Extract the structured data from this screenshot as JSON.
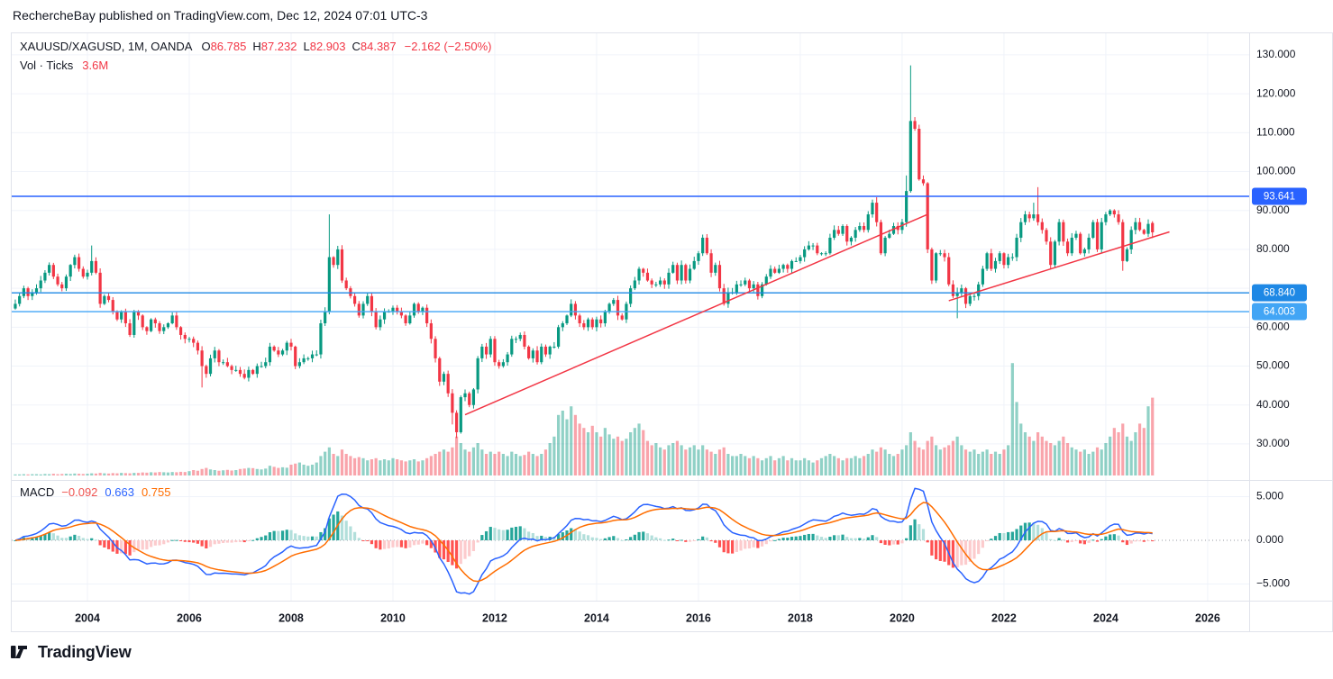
{
  "header": {
    "attribution": "RechercheBay published on TradingView.com, Dec 12, 2024 07:01 UTC-3"
  },
  "legend": {
    "symbol": "XAUUSD/XAGUSD, 1M, OANDA",
    "ohlc": [
      {
        "label": "O",
        "value": "86.785"
      },
      {
        "label": "H",
        "value": "87.232"
      },
      {
        "label": "L",
        "value": "82.903"
      },
      {
        "label": "C",
        "value": "84.387"
      }
    ],
    "change": "−2.162 (−2.50%)",
    "volume_label": "Vol · Ticks",
    "volume_value": "3.6M"
  },
  "macd_legend": {
    "label": "MACD",
    "values": [
      {
        "text": "−0.092",
        "color": "#ef5350"
      },
      {
        "text": "0.663",
        "color": "#2962ff"
      },
      {
        "text": "0.755",
        "color": "#ff6d00"
      }
    ]
  },
  "price_axis": {
    "ticks": [
      "130.000",
      "120.000",
      "110.000",
      "100.000",
      "90.000",
      "80.000",
      "60.000",
      "50.000",
      "40.000",
      "30.000"
    ]
  },
  "macd_axis": [
    {
      "label": "5.000",
      "v": 5
    },
    {
      "label": "0.000",
      "v": 0
    },
    {
      "label": "−5.000",
      "v": -5
    }
  ],
  "time_axis": [
    "2004",
    "2006",
    "2008",
    "2010",
    "2012",
    "2014",
    "2016",
    "2018",
    "2020",
    "2022",
    "2024",
    "2026"
  ],
  "levels": [
    {
      "label": "93.641",
      "price": 93.641,
      "color": "#2962ff"
    },
    {
      "label": "68.840",
      "price": 68.84,
      "color": "#1e88e5"
    },
    {
      "label": "64.003",
      "price": 64.003,
      "color": "#42a5f5"
    }
  ],
  "trendlines": [
    {
      "start_month": "2011-06",
      "start_price": 37.5,
      "end_month": "2020-07",
      "end_price": 89,
      "color": "#f23645"
    },
    {
      "start_month": "2020-12",
      "start_price": 66.8,
      "end_month": "2025-04",
      "end_price": 84.5,
      "color": "#f23645"
    }
  ],
  "footer": {
    "brand": "TradingView"
  },
  "chart_data": {
    "type": "candlestick",
    "symbol": "XAUUSD/XAGUSD",
    "timeframe": "1M",
    "exchange": "OANDA",
    "subpanes": [
      "volume",
      "macd"
    ],
    "start_month": "2002-08",
    "ohlc_current": {
      "o": 86.785,
      "h": 87.232,
      "l": 82.903,
      "c": 84.387,
      "change": -2.162,
      "change_pct": -2.5
    },
    "price_axis_range": [
      23,
      134
    ],
    "macd_axis_range": [
      -6.9,
      6.9
    ],
    "closes": [
      66,
      68,
      70,
      68,
      69,
      70,
      72,
      74,
      76,
      73,
      71,
      70,
      73,
      76,
      78,
      75,
      73,
      74,
      77,
      74,
      66,
      68,
      67,
      64,
      62,
      64,
      61,
      58,
      64,
      63,
      60,
      59,
      62,
      61,
      59,
      60,
      61,
      63,
      60,
      58,
      57,
      57,
      56,
      54,
      50,
      48,
      52,
      54,
      51,
      51,
      50,
      49,
      49,
      48,
      47,
      49,
      48,
      50,
      50,
      51,
      55,
      54,
      53,
      54,
      56,
      55,
      50,
      51,
      52,
      52,
      53,
      53,
      61,
      64,
      78,
      76,
      80,
      72,
      70,
      68,
      66,
      63,
      66,
      68,
      64,
      60,
      62,
      64,
      64,
      65,
      64,
      63,
      61,
      63,
      66,
      64,
      65,
      61,
      57,
      52,
      46,
      48,
      43,
      38,
      33,
      42,
      43,
      40,
      44,
      52,
      55,
      53,
      57,
      51,
      50,
      51,
      53,
      57,
      57,
      58,
      55,
      52,
      54,
      51,
      55,
      53,
      55,
      55,
      60,
      61,
      63,
      66,
      63,
      61,
      60,
      62,
      60,
      62,
      61,
      64,
      66,
      67,
      63,
      62,
      66,
      70,
      72,
      75,
      74,
      72,
      71,
      71,
      72,
      71,
      74,
      76,
      72,
      76,
      72,
      75,
      77,
      79,
      83,
      79,
      74,
      76,
      70,
      66,
      69,
      69,
      71,
      71,
      72,
      70,
      71,
      68,
      71,
      73,
      75,
      74,
      75,
      76,
      75,
      77,
      77,
      78,
      80,
      81,
      81,
      79,
      79,
      79,
      83,
      85,
      84,
      86,
      82,
      83,
      85,
      86,
      85,
      89,
      92,
      87,
      79,
      83,
      84,
      86,
      85,
      87,
      95,
      113,
      111,
      98,
      97,
      80,
      72,
      79,
      79,
      78,
      71,
      68,
      69,
      70,
      66,
      68,
      68,
      71,
      75,
      79,
      75,
      77,
      79,
      76,
      78,
      78,
      83,
      87,
      89,
      88,
      89,
      87,
      85,
      82,
      76,
      82,
      87,
      82,
      79,
      83,
      84,
      79,
      80,
      83,
      87,
      80,
      87,
      89,
      90,
      89,
      87,
      77,
      80,
      85,
      87,
      85,
      84,
      86.549,
      84.387
    ],
    "volumes_m": [
      0.05,
      0.05,
      0.06,
      0.05,
      0.06,
      0.06,
      0.05,
      0.07,
      0.06,
      0.08,
      0.06,
      0.07,
      0.08,
      0.07,
      0.09,
      0.08,
      0.07,
      0.08,
      0.1,
      0.09,
      0.12,
      0.1,
      0.09,
      0.11,
      0.1,
      0.12,
      0.11,
      0.1,
      0.12,
      0.12,
      0.14,
      0.13,
      0.15,
      0.14,
      0.16,
      0.15,
      0.14,
      0.16,
      0.15,
      0.17,
      0.16,
      0.2,
      0.25,
      0.22,
      0.3,
      0.35,
      0.28,
      0.25,
      0.22,
      0.24,
      0.26,
      0.23,
      0.25,
      0.3,
      0.32,
      0.35,
      0.34,
      0.3,
      0.28,
      0.32,
      0.45,
      0.4,
      0.35,
      0.38,
      0.36,
      0.5,
      0.55,
      0.6,
      0.5,
      0.45,
      0.5,
      0.6,
      0.9,
      1.1,
      1.3,
      1.0,
      0.9,
      1.2,
      1.0,
      0.9,
      0.8,
      0.85,
      0.8,
      0.7,
      0.75,
      0.8,
      0.7,
      0.75,
      0.7,
      0.8,
      0.75,
      0.7,
      0.65,
      0.7,
      0.75,
      0.65,
      0.7,
      0.8,
      0.9,
      1.0,
      1.1,
      1.2,
      1.1,
      1.3,
      1.8,
      1.5,
      1.2,
      1.1,
      1.3,
      1.5,
      1.2,
      1.0,
      1.1,
      1.0,
      1.1,
      1.0,
      0.9,
      1.1,
      1.0,
      0.9,
      0.95,
      1.1,
      1.0,
      0.9,
      1.0,
      1.2,
      1.5,
      1.8,
      2.8,
      3.0,
      2.6,
      3.2,
      2.8,
      2.4,
      2.2,
      2.0,
      2.3,
      2.0,
      1.8,
      2.2,
      1.9,
      1.7,
      1.8,
      1.6,
      1.7,
      2.0,
      2.2,
      2.4,
      2.1,
      1.6,
      1.4,
      1.5,
      1.3,
      1.2,
      1.4,
      1.5,
      1.6,
      1.4,
      1.2,
      1.3,
      1.4,
      1.2,
      1.4,
      1.2,
      1.1,
      1.0,
      1.2,
      1.3,
      1.0,
      0.9,
      0.9,
      1.0,
      0.9,
      0.8,
      0.9,
      0.8,
      0.7,
      0.8,
      0.9,
      0.7,
      0.8,
      0.9,
      0.7,
      0.8,
      0.7,
      0.7,
      0.8,
      0.7,
      0.6,
      0.7,
      0.8,
      0.9,
      1.0,
      0.9,
      0.8,
      0.7,
      0.8,
      0.8,
      0.9,
      0.8,
      0.9,
      1.0,
      1.2,
      1.1,
      1.3,
      1.2,
      1.0,
      0.9,
      1.0,
      1.2,
      1.4,
      2.0,
      1.6,
      1.3,
      1.2,
      1.6,
      1.8,
      1.4,
      1.2,
      1.3,
      1.4,
      1.6,
      1.8,
      1.4,
      1.2,
      1.1,
      1.2,
      1.0,
      1.1,
      1.2,
      1.0,
      1.1,
      1.0,
      1.2,
      1.4,
      5.2,
      3.4,
      2.4,
      2.0,
      1.8,
      1.6,
      2.0,
      1.8,
      1.6,
      1.5,
      1.4,
      1.6,
      1.8,
      1.5,
      1.3,
      1.2,
      1.1,
      1.2,
      1.0,
      1.1,
      1.3,
      1.2,
      1.5,
      1.8,
      2.2,
      2.0,
      2.4,
      1.8,
      1.6,
      2.0,
      2.4,
      2.2,
      3.2,
      3.6
    ],
    "wick_overrides": [
      {
        "i": 18,
        "h": 81
      },
      {
        "i": 44,
        "l": 44.5
      },
      {
        "i": 74,
        "h": 89
      },
      {
        "i": 103,
        "l": 35
      },
      {
        "i": 104,
        "l": 31.5
      },
      {
        "i": 162,
        "h": 83.8
      },
      {
        "i": 203,
        "h": 93.4
      },
      {
        "i": 210,
        "h": 99
      },
      {
        "i": 211,
        "h": 127.3
      },
      {
        "i": 212,
        "h": 114
      },
      {
        "i": 222,
        "l": 62.3
      },
      {
        "i": 240,
        "h": 92
      },
      {
        "i": 241,
        "h": 96
      },
      {
        "i": 261,
        "l": 74.5
      },
      {
        "i": 268,
        "o": 86.785,
        "h": 87.232,
        "l": 82.903
      }
    ],
    "macd": {
      "fast": 12,
      "slow": 26,
      "signal": 9,
      "current": {
        "hist": -0.092,
        "macd": 0.663,
        "signal": 0.755
      }
    },
    "colors": {
      "up": "#089981",
      "down": "#f23645",
      "vol_up": "rgba(8,153,129,0.45)",
      "vol_down": "rgba(242,54,69,0.45)",
      "macd": "#2962ff",
      "signal": "#ff6d00",
      "hist_up": "#26a69a",
      "hist_up_fade": "#b2dfdb",
      "hist_down": "#ff5252",
      "hist_down_fade": "#fccbcd",
      "grid": "#f0f3fa",
      "border": "#e0e3eb",
      "text": "#131722"
    }
  }
}
